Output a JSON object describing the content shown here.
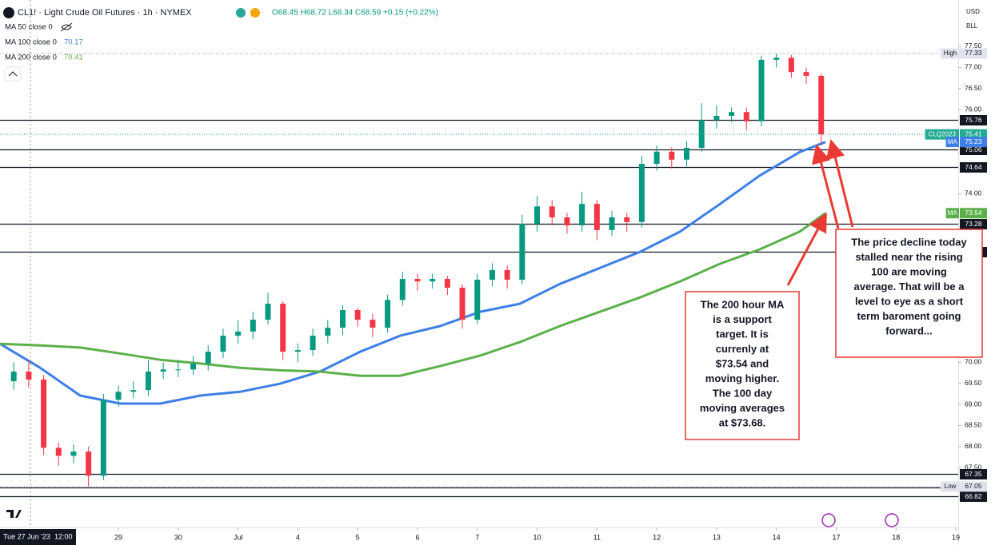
{
  "chart_data": {
    "type": "candlestick",
    "title": "CL1! · Light Crude Oil Futures · 1h · NYMEX",
    "ohlc_readout": "O68.45 H68.72 L68.34 C68.59 +0.15 (+0.22%)",
    "currency": "USD",
    "unit": "BLL",
    "ylim": [
      66.08,
      78.6
    ],
    "yticks": [
      {
        "value": 77.5,
        "label": "77.50"
      },
      {
        "value": 77,
        "label": "77.00"
      },
      {
        "value": 76.5,
        "label": "76.50"
      },
      {
        "value": 76,
        "label": "76.00"
      },
      {
        "value": 74,
        "label": "74.00"
      },
      {
        "value": 70,
        "label": "70.00"
      },
      {
        "value": 69.5,
        "label": "69.50"
      },
      {
        "value": 69,
        "label": "69.00"
      },
      {
        "value": 68.5,
        "label": "68.50"
      },
      {
        "value": 68,
        "label": "68.00"
      },
      {
        "value": 67.5,
        "label": "67.50"
      }
    ],
    "xlim": [
      -0.98,
      15.04
    ],
    "xticks": [
      {
        "value": 1,
        "label": "29"
      },
      {
        "value": 2,
        "label": "30"
      },
      {
        "value": 3,
        "label": "Jul"
      },
      {
        "value": 4,
        "label": "4"
      },
      {
        "value": 5,
        "label": "5"
      },
      {
        "value": 6,
        "label": "6"
      },
      {
        "value": 7,
        "label": "7"
      },
      {
        "value": 8,
        "label": "10"
      },
      {
        "value": 9,
        "label": "11"
      },
      {
        "value": 10,
        "label": "12"
      },
      {
        "value": 11,
        "label": "13"
      },
      {
        "value": 12,
        "label": "14"
      },
      {
        "value": 13,
        "label": "17"
      },
      {
        "value": 14,
        "label": "18"
      },
      {
        "value": 15,
        "label": "19"
      }
    ],
    "crosshair": {
      "x": -0.47,
      "label": "Tue 27 Jun '23",
      "time": "12:00"
    },
    "up_color": "#089981",
    "down_color": "#f23645",
    "x": [
      -0.75,
      -0.5,
      -0.25,
      0,
      0.25,
      0.5,
      0.75,
      1,
      1.25,
      1.5,
      1.75,
      2,
      2.25,
      2.5,
      2.75,
      3,
      3.25,
      3.5,
      3.75,
      4,
      4.25,
      4.5,
      4.75,
      5,
      5.25,
      5.5,
      5.75,
      6,
      6.25,
      6.5,
      6.75,
      7,
      7.25,
      7.5,
      7.75,
      8,
      8.25,
      8.5,
      8.75,
      9,
      9.25,
      9.5,
      9.75,
      10,
      10.25,
      10.5,
      10.75,
      11,
      11.25,
      11.5,
      11.75,
      12,
      12.25,
      12.5,
      12.75
    ],
    "open": [
      69.55,
      69.78,
      69.59,
      67.97,
      67.78,
      67.88,
      67.31,
      69.11,
      69.3,
      69.34,
      69.78,
      69.83,
      69.83,
      69.97,
      70.25,
      70.63,
      70.73,
      71.01,
      71.39,
      70.25,
      70.29,
      70.63,
      70.82,
      71.24,
      71.01,
      70.82,
      71.48,
      71.98,
      71.92,
      71.98,
      71.77,
      71.01,
      71.96,
      72.19,
      71.96,
      73.29,
      73.7,
      73.44,
      73.25,
      73.76,
      73.14,
      73.44,
      73.33,
      74.71,
      75.0,
      74.81,
      75.09,
      75.75,
      75.85,
      75.94,
      75.72,
      77.18,
      77.23,
      76.89,
      76.8
    ],
    "high": [
      70.0,
      70.05,
      69.7,
      68.1,
      68.05,
      68.0,
      69.25,
      69.45,
      69.55,
      70.05,
      70.0,
      70.05,
      70.15,
      70.4,
      70.8,
      71.0,
      71.2,
      71.65,
      71.45,
      70.45,
      70.8,
      71.0,
      71.35,
      71.3,
      71.15,
      71.6,
      72.15,
      72.1,
      72.1,
      72.05,
      71.85,
      72.1,
      72.35,
      72.3,
      73.5,
      73.95,
      73.85,
      73.55,
      74.05,
      73.85,
      73.6,
      73.55,
      74.9,
      75.15,
      75.1,
      75.25,
      76.15,
      76.1,
      76.05,
      76.05,
      77.28,
      77.33,
      77.3,
      77.0,
      76.85
    ],
    "low": [
      69.35,
      69.4,
      67.8,
      67.55,
      67.6,
      67.05,
      67.2,
      68.95,
      69.15,
      69.2,
      69.6,
      69.65,
      69.7,
      69.8,
      70.1,
      70.45,
      70.55,
      70.9,
      70.05,
      70.0,
      70.15,
      70.45,
      70.65,
      70.85,
      70.6,
      70.7,
      71.35,
      71.7,
      71.75,
      71.6,
      70.8,
      70.9,
      71.8,
      71.75,
      71.85,
      73.1,
      73.25,
      73.05,
      73.1,
      72.9,
      73.0,
      73.1,
      73.2,
      74.55,
      74.6,
      74.65,
      75.0,
      75.55,
      75.7,
      75.5,
      75.6,
      77.0,
      76.75,
      76.6,
      75.15
    ],
    "close": [
      69.78,
      69.59,
      67.97,
      67.78,
      67.88,
      67.31,
      69.11,
      69.3,
      69.34,
      69.78,
      69.83,
      69.83,
      69.97,
      70.25,
      70.63,
      70.73,
      71.01,
      71.39,
      70.25,
      70.29,
      70.63,
      70.82,
      71.24,
      71.01,
      70.82,
      71.48,
      71.98,
      71.92,
      71.98,
      71.77,
      71.01,
      71.96,
      72.19,
      71.96,
      73.29,
      73.7,
      73.44,
      73.25,
      73.76,
      73.14,
      73.44,
      73.33,
      74.71,
      75.0,
      74.81,
      75.09,
      75.75,
      75.85,
      75.94,
      75.72,
      77.18,
      77.23,
      76.89,
      76.8,
      75.41
    ],
    "series": [
      {
        "name": "MA 50 close 0",
        "visible": false
      },
      {
        "name": "MA 100 close 0",
        "legend_value": 70.17,
        "color": "#3d7fe6",
        "x": [
          -0.98,
          -0.31,
          0.36,
          1.03,
          1.7,
          2.37,
          3.03,
          3.7,
          4.37,
          5.04,
          5.71,
          6.38,
          7.05,
          7.71,
          8.38,
          9.05,
          9.72,
          10.39,
          11.06,
          11.72,
          12.39,
          12.82
        ],
        "values": [
          70.44,
          69.87,
          69.21,
          69.02,
          69.02,
          69.21,
          69.3,
          69.49,
          69.78,
          70.25,
          70.63,
          70.86,
          71.2,
          71.39,
          71.86,
          72.24,
          72.62,
          73.1,
          73.76,
          74.43,
          74.99,
          75.23
        ]
      },
      {
        "name": "MA 200 close 0",
        "legend_value": 70.41,
        "color": "#5cb04a",
        "x": [
          -0.98,
          -0.31,
          0.36,
          1.03,
          1.7,
          2.37,
          3.03,
          3.7,
          4.37,
          5.04,
          5.71,
          6.38,
          7.05,
          7.71,
          8.38,
          9.05,
          9.72,
          10.39,
          11.06,
          11.72,
          12.39,
          12.82
        ],
        "values": [
          70.44,
          70.4,
          70.35,
          70.21,
          70.06,
          69.97,
          69.87,
          69.81,
          69.78,
          69.68,
          69.68,
          69.91,
          70.16,
          70.48,
          70.86,
          71.2,
          71.54,
          71.92,
          72.34,
          72.68,
          73.1,
          73.54
        ]
      }
    ],
    "levels": [
      75.76,
      75.06,
      74.64,
      73.28,
      72.63,
      67.35,
      67.03,
      66.82
    ],
    "price_tags": [
      {
        "name": "High",
        "value": 77.33,
        "style": "plain"
      },
      {
        "name": "CLQ2023",
        "value": 75.41,
        "color": "#22ab94",
        "style": "line"
      },
      {
        "name": "MA",
        "value": 75.23,
        "color": "#3d7fe6",
        "style": "box"
      },
      {
        "name": "MA",
        "value": 73.54,
        "color": "#5cb04a",
        "style": "box"
      },
      {
        "name": "Low",
        "value": 67.05,
        "style": "plain"
      }
    ],
    "annotations": [
      {
        "lines": [
          "The 200 hour MA",
          "is a support",
          "target. It is",
          "currenly at",
          "$73.54 and",
          "moving higher.",
          "The 100 day",
          "moving averages",
          "at $73.68."
        ]
      },
      {
        "lines": [
          "The price decline today",
          "stalled near the rising",
          "100 are moving",
          "average.  That will be a",
          "level to eye as a short",
          "term baroment going",
          "forward..."
        ]
      }
    ]
  }
}
